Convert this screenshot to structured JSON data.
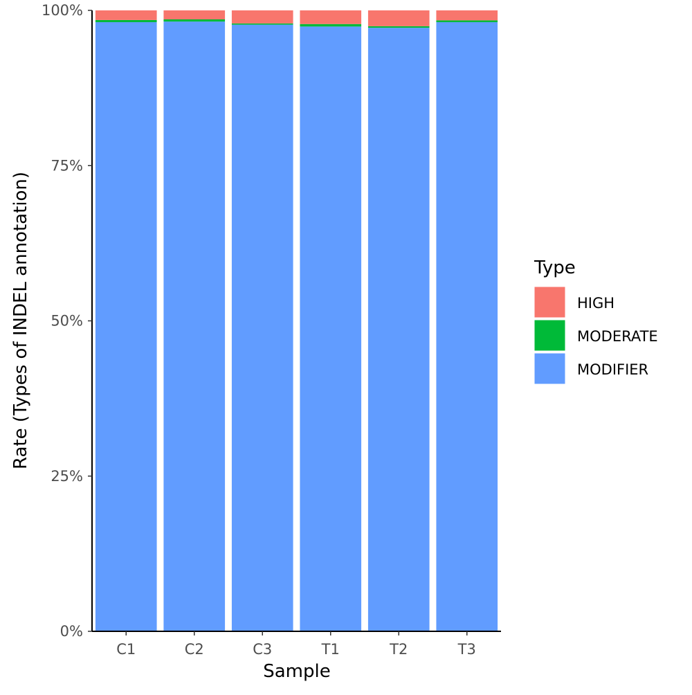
{
  "chart_data": {
    "type": "bar",
    "stacked": true,
    "xlabel": "Sample",
    "ylabel": "Rate (Types of INDEL annotation)",
    "ylim": [
      0,
      100
    ],
    "yticks": [
      "0%",
      "25%",
      "50%",
      "75%",
      "100%"
    ],
    "ytick_values": [
      0,
      25,
      50,
      75,
      100
    ],
    "categories": [
      "C1",
      "C2",
      "C3",
      "T1",
      "T2",
      "T3"
    ],
    "legend_title": "Type",
    "legend_position": "right",
    "series": [
      {
        "name": "MODIFIER",
        "color": "#619CFF",
        "values": [
          98.1,
          98.2,
          97.7,
          97.4,
          97.2,
          98.1
        ]
      },
      {
        "name": "MODERATE",
        "color": "#00BA38",
        "values": [
          0.35,
          0.35,
          0.2,
          0.4,
          0.25,
          0.3
        ]
      },
      {
        "name": "HIGH",
        "color": "#F8766D",
        "values": [
          1.55,
          1.45,
          2.1,
          2.2,
          2.55,
          1.6
        ]
      }
    ],
    "legend_order": [
      "HIGH",
      "MODERATE",
      "MODIFIER"
    ]
  }
}
